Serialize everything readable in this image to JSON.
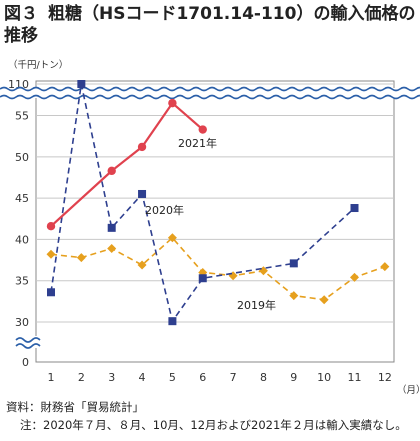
{
  "figure": {
    "number": "図３",
    "title": "粗糖（HSコード1701.14-110）の輸入価格の推移"
  },
  "chart_data": {
    "type": "line",
    "y_unit_label": "（千円/トン）",
    "x_unit_label": "（月）",
    "categories": [
      "1",
      "2",
      "3",
      "4",
      "5",
      "6",
      "7",
      "8",
      "9",
      "10",
      "11",
      "12"
    ],
    "y_ticks": [
      "0",
      "30",
      "35",
      "40",
      "45",
      "50",
      "55",
      "110"
    ],
    "y_lower_range": [
      30,
      57
    ],
    "axis_break": true,
    "grid": "horizontal",
    "series": [
      {
        "name": "2021年",
        "color": "#e0424e",
        "style": "solid",
        "marker": "circle",
        "x": [
          1,
          2,
          3,
          4,
          5,
          6
        ],
        "values": [
          41.6,
          null,
          48.3,
          51.2,
          56.5,
          53.3
        ]
      },
      {
        "name": "2020年",
        "color": "#2e3f8f",
        "style": "dashed",
        "marker": "square",
        "x": [
          1,
          2,
          3,
          4,
          5,
          6,
          9,
          11
        ],
        "values": [
          33.6,
          110,
          41.4,
          45.5,
          30.1,
          35.3,
          37.1,
          43.8
        ]
      },
      {
        "name": "2019年",
        "color": "#e6a01e",
        "style": "dashed",
        "marker": "diamond",
        "x": [
          1,
          2,
          3,
          4,
          5,
          6,
          7,
          8,
          9,
          10,
          11,
          12
        ],
        "values": [
          38.2,
          37.8,
          38.9,
          36.9,
          40.2,
          36.0,
          35.6,
          36.2,
          33.2,
          32.7,
          35.4,
          36.7
        ]
      }
    ]
  },
  "footnotes": {
    "source": "資料：財務省「貿易統計」",
    "note": "注：2020年７月、８月、10月、12月および2021年２月は輸入実績なし。"
  }
}
